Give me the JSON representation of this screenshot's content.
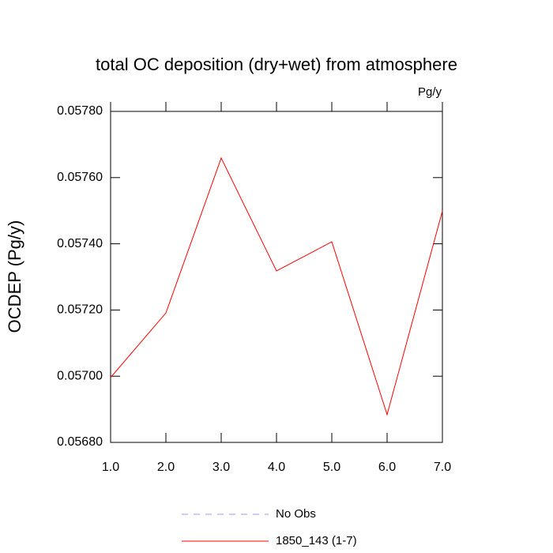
{
  "chart_data": {
    "type": "line",
    "title": "total OC deposition (dry+wet) from atmosphere",
    "units": "Pg/y",
    "y_label": "OCDEP  (Pg/y)",
    "x": [
      1,
      2,
      3,
      4,
      5,
      6,
      7
    ],
    "series": [
      {
        "name": "1850_143 (1-7)",
        "color": "#ff0000",
        "values": [
          0.056996,
          0.057191,
          0.057659,
          0.057318,
          0.057406,
          0.056884,
          0.057499
        ]
      }
    ],
    "extra_legend": [
      {
        "name": "No Obs",
        "color": "#9a9aee",
        "dash": "8 7"
      }
    ],
    "xlim": [
      1,
      7
    ],
    "xticks": [
      {
        "value": 1,
        "label": "1.0"
      },
      {
        "value": 2,
        "label": "2.0"
      },
      {
        "value": 3,
        "label": "3.0"
      },
      {
        "value": 4,
        "label": "4.0"
      },
      {
        "value": 5,
        "label": "5.0"
      },
      {
        "value": 6,
        "label": "6.0"
      },
      {
        "value": 7,
        "label": "7.0"
      }
    ],
    "ylim": [
      0.0568,
      0.0578
    ],
    "yticks": [
      {
        "value": 0.0568,
        "label": "0.05680"
      },
      {
        "value": 0.057,
        "label": "0.05700"
      },
      {
        "value": 0.0572,
        "label": "0.05720"
      },
      {
        "value": 0.0574,
        "label": "0.05740"
      },
      {
        "value": 0.0576,
        "label": "0.05760"
      },
      {
        "value": 0.0578,
        "label": "0.05780"
      }
    ],
    "grid": false
  }
}
